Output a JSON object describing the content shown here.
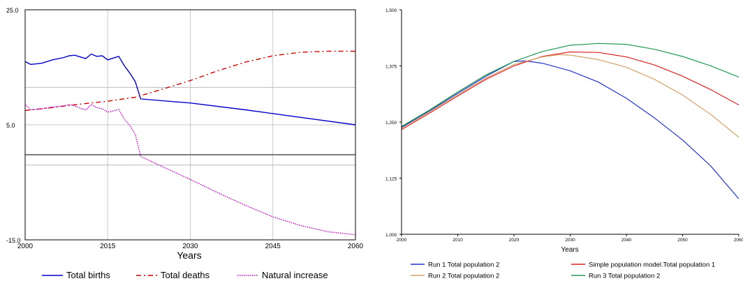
{
  "chart_data": [
    {
      "type": "line",
      "xlabel": "Years",
      "ylabel": "",
      "xlim": [
        2000,
        2060
      ],
      "ylim": [
        -15,
        25
      ],
      "x_ticks": [
        "2000",
        "2015",
        "2030",
        "2045",
        "2060"
      ],
      "y_ticks": [
        "25.0",
        "5.0",
        "-15.0"
      ],
      "grid": true,
      "legend_position": "bottom",
      "series": [
        {
          "name": "Total births",
          "color": "#0000cc",
          "style": "solid",
          "points": [
            [
              2000,
              16.0
            ],
            [
              2001,
              15.5
            ],
            [
              2003,
              15.7
            ],
            [
              2005,
              16.3
            ],
            [
              2007,
              16.7
            ],
            [
              2008,
              17.0
            ],
            [
              2009,
              17.1
            ],
            [
              2010,
              16.8
            ],
            [
              2011,
              16.5
            ],
            [
              2012,
              17.3
            ],
            [
              2013,
              16.9
            ],
            [
              2014,
              17.0
            ],
            [
              2015,
              16.3
            ],
            [
              2016,
              16.6
            ],
            [
              2017,
              16.9
            ],
            [
              2018,
              15.3
            ],
            [
              2019,
              14.0
            ],
            [
              2020,
              12.5
            ],
            [
              2021,
              9.5
            ],
            [
              2030,
              8.8
            ],
            [
              2040,
              7.6
            ],
            [
              2050,
              6.3
            ],
            [
              2060,
              5.0
            ]
          ]
        },
        {
          "name": "Total deaths",
          "color": "#cc0000",
          "style": "dashdot",
          "points": [
            [
              2000,
              7.5
            ],
            [
              2005,
              8.0
            ],
            [
              2010,
              8.6
            ],
            [
              2015,
              9.1
            ],
            [
              2020,
              9.8
            ],
            [
              2025,
              11.2
            ],
            [
              2030,
              12.7
            ],
            [
              2035,
              14.4
            ],
            [
              2040,
              15.9
            ],
            [
              2045,
              17.0
            ],
            [
              2050,
              17.6
            ],
            [
              2055,
              17.8
            ],
            [
              2060,
              17.8
            ]
          ]
        },
        {
          "name": "Natural increase",
          "color": "#cc00cc",
          "style": "dotted",
          "points": [
            [
              2000,
              8.5
            ],
            [
              2001,
              7.6
            ],
            [
              2003,
              7.8
            ],
            [
              2005,
              8.1
            ],
            [
              2007,
              8.3
            ],
            [
              2008,
              8.5
            ],
            [
              2009,
              8.3
            ],
            [
              2010,
              7.9
            ],
            [
              2011,
              7.6
            ],
            [
              2012,
              8.5
            ],
            [
              2013,
              8.0
            ],
            [
              2014,
              7.8
            ],
            [
              2015,
              7.2
            ],
            [
              2016,
              7.4
            ],
            [
              2017,
              7.7
            ],
            [
              2018,
              6.0
            ],
            [
              2019,
              4.9
            ],
            [
              2020,
              3.3
            ],
            [
              2021,
              -0.5
            ],
            [
              2025,
              -2.3
            ],
            [
              2030,
              -4.5
            ],
            [
              2035,
              -6.8
            ],
            [
              2040,
              -9.0
            ],
            [
              2045,
              -11.0
            ],
            [
              2050,
              -12.5
            ],
            [
              2055,
              -13.6
            ],
            [
              2060,
              -14.1
            ]
          ]
        }
      ],
      "reference_lines": [
        -0.2,
        -2.0,
        11.5
      ]
    },
    {
      "type": "line",
      "xlabel": "Years",
      "ylabel": "",
      "xlim": [
        2000,
        2060
      ],
      "ylim": [
        1000,
        1500
      ],
      "x_ticks": [
        "2000",
        "2010",
        "2020",
        "2030",
        "2040",
        "2050",
        "2060"
      ],
      "y_ticks": [
        "1,000",
        "1,125",
        "1,250",
        "1,375",
        "1,500"
      ],
      "grid": false,
      "legend_position": "bottom",
      "series": [
        {
          "name": "Run 1 Total population 2",
          "color": "#2233cc",
          "points": [
            [
              2000,
              1238
            ],
            [
              2005,
              1275
            ],
            [
              2010,
              1314
            ],
            [
              2015,
              1352
            ],
            [
              2020,
              1385
            ],
            [
              2022,
              1386
            ],
            [
              2025,
              1381
            ],
            [
              2030,
              1364
            ],
            [
              2035,
              1339
            ],
            [
              2040,
              1303
            ],
            [
              2045,
              1259
            ],
            [
              2050,
              1210
            ],
            [
              2055,
              1152
            ],
            [
              2060,
              1079
            ]
          ]
        },
        {
          "name": "Simple population model.Total population 1",
          "color": "#dd2222",
          "points": [
            [
              2000,
              1233
            ],
            [
              2005,
              1270
            ],
            [
              2010,
              1308
            ],
            [
              2015,
              1345
            ],
            [
              2020,
              1375
            ],
            [
              2025,
              1396
            ],
            [
              2030,
              1406
            ],
            [
              2035,
              1405
            ],
            [
              2040,
              1395
            ],
            [
              2045,
              1377
            ],
            [
              2050,
              1352
            ],
            [
              2055,
              1322
            ],
            [
              2060,
              1288
            ]
          ]
        },
        {
          "name": "Run 2 Total population 2",
          "color": "#d4a26a",
          "points": [
            [
              2000,
              1236
            ],
            [
              2005,
              1273
            ],
            [
              2010,
              1311
            ],
            [
              2015,
              1348
            ],
            [
              2020,
              1378
            ],
            [
              2025,
              1395
            ],
            [
              2028,
              1400
            ],
            [
              2030,
              1399
            ],
            [
              2035,
              1389
            ],
            [
              2040,
              1372
            ],
            [
              2045,
              1345
            ],
            [
              2050,
              1310
            ],
            [
              2055,
              1267
            ],
            [
              2060,
              1216
            ]
          ]
        },
        {
          "name": "Run 3 Total population 2",
          "color": "#229955",
          "points": [
            [
              2000,
              1240
            ],
            [
              2005,
              1277
            ],
            [
              2010,
              1317
            ],
            [
              2015,
              1355
            ],
            [
              2020,
              1385
            ],
            [
              2025,
              1407
            ],
            [
              2030,
              1421
            ],
            [
              2035,
              1425
            ],
            [
              2040,
              1423
            ],
            [
              2045,
              1412
            ],
            [
              2050,
              1396
            ],
            [
              2055,
              1375
            ],
            [
              2060,
              1350
            ]
          ]
        }
      ]
    }
  ]
}
